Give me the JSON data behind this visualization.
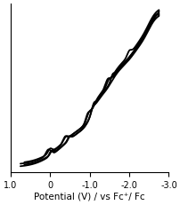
{
  "title": "",
  "xlabel": "Potential (V) / vs Fc⁺/ Fc",
  "ylabel": "",
  "xlim": [
    1.0,
    -3.0
  ],
  "xticks": [
    1.0,
    0.0,
    -1.0,
    -2.0,
    -3.0
  ],
  "xtick_labels": [
    "1.0",
    "0",
    "-1.0",
    "-2.0",
    "-3.0"
  ],
  "background_color": "#ffffff",
  "line_color": "#000000",
  "linewidth": 1.3,
  "figsize": [
    2.03,
    2.31
  ],
  "dpi": 100
}
